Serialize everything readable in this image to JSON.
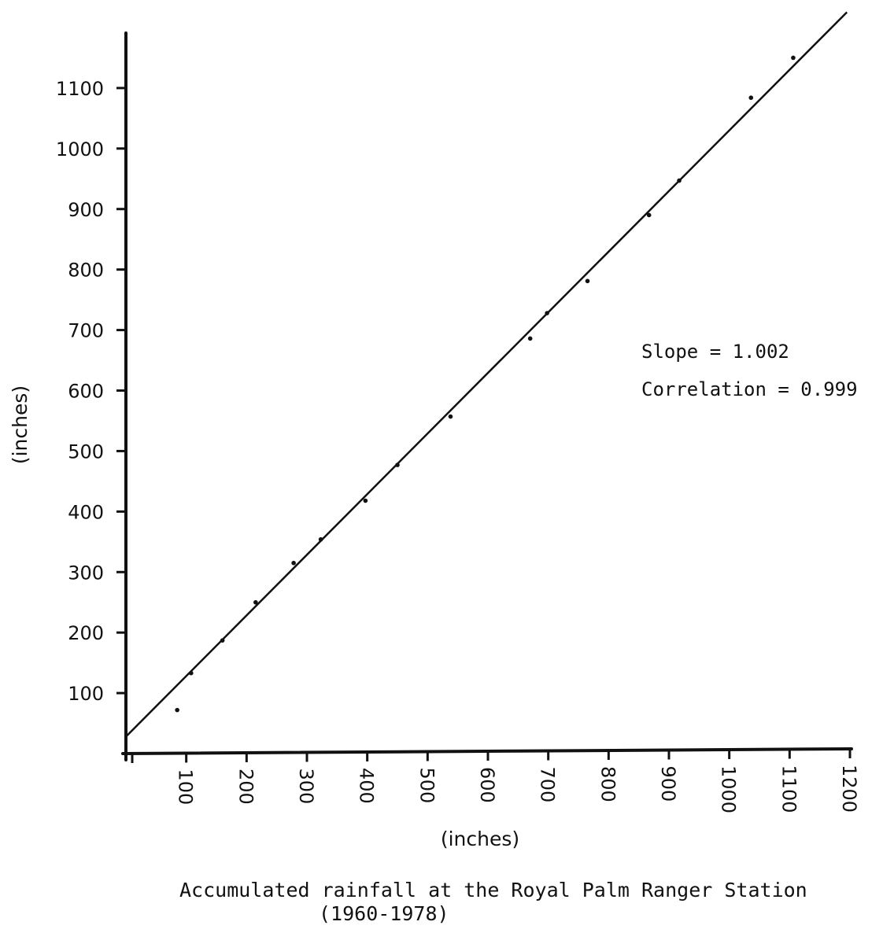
{
  "chart_data": {
    "type": "scatter",
    "x_axis_label": "(inches)",
    "y_axis_label": "(inches)",
    "x_ticks": [
      100,
      200,
      300,
      400,
      500,
      600,
      700,
      800,
      900,
      1000,
      1100,
      1200
    ],
    "y_ticks": [
      100,
      200,
      300,
      400,
      500,
      600,
      700,
      800,
      900,
      1000,
      1100
    ],
    "xlim": [
      0,
      1200
    ],
    "ylim": [
      0,
      1200
    ],
    "points": [
      {
        "x": 85,
        "y": 72
      },
      {
        "x": 108,
        "y": 133
      },
      {
        "x": 160,
        "y": 187
      },
      {
        "x": 215,
        "y": 250
      },
      {
        "x": 278,
        "y": 315
      },
      {
        "x": 323,
        "y": 354
      },
      {
        "x": 397,
        "y": 418
      },
      {
        "x": 450,
        "y": 477
      },
      {
        "x": 538,
        "y": 557
      },
      {
        "x": 670,
        "y": 686
      },
      {
        "x": 698,
        "y": 728
      },
      {
        "x": 765,
        "y": 781
      },
      {
        "x": 867,
        "y": 890
      },
      {
        "x": 917,
        "y": 947
      },
      {
        "x": 1036,
        "y": 1084
      },
      {
        "x": 1106,
        "y": 1150
      }
    ],
    "fit_line": {
      "slope": 1.002,
      "intercept": 28
    },
    "annotations": {
      "slope": "Slope = 1.002",
      "correlation": "Correlation = 0.999"
    },
    "caption_line1": "Accumulated rainfall at the Royal Palm Ranger Station",
    "caption_line2": "(1960-1978)",
    "grid": false,
    "legend": "none"
  }
}
